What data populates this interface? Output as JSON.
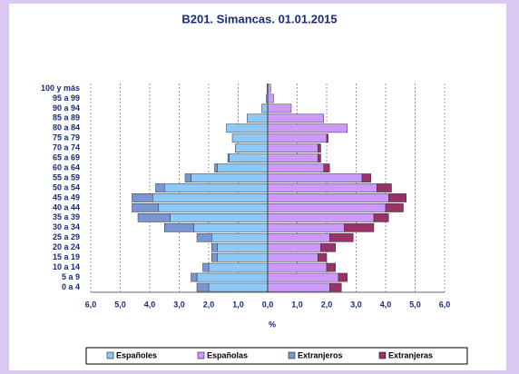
{
  "chart_data": {
    "type": "pyramid",
    "title": "B201. Simancas. 01.01.2015",
    "x_label": "%",
    "categories": [
      "0 a 4",
      "5 a 9",
      "10 a 14",
      "15 a 19",
      "20 a 24",
      "25 a 29",
      "30 a 34",
      "35 a 39",
      "40 a 44",
      "45 a 49",
      "50 a 54",
      "55 a 59",
      "60 a 64",
      "65 a 69",
      "70 a 74",
      "75 a 79",
      "80 a 84",
      "85 a 89",
      "90 a 94",
      "95 a 99",
      "100 y más"
    ],
    "series": [
      {
        "name": "Españoles",
        "color": "#8cc8f8",
        "side": "left",
        "values": [
          -2.0,
          -2.4,
          -2.0,
          -1.7,
          -1.7,
          -1.9,
          -2.5,
          -3.3,
          -3.7,
          -3.9,
          -3.5,
          -2.6,
          -1.7,
          -1.3,
          -1.1,
          -1.2,
          -1.4,
          -0.7,
          -0.2,
          -0.05,
          -0.02
        ]
      },
      {
        "name": "Españolas",
        "color": "#cc99ff",
        "side": "right",
        "values": [
          2.1,
          2.4,
          2.0,
          1.7,
          1.8,
          2.1,
          2.6,
          3.6,
          4.0,
          4.1,
          3.7,
          3.2,
          1.9,
          1.7,
          1.7,
          2.0,
          2.7,
          1.9,
          0.8,
          0.2,
          0.1
        ]
      },
      {
        "name": "Extranjeros",
        "color": "#7a96d0",
        "side": "left",
        "values": [
          -0.4,
          -0.2,
          -0.2,
          -0.2,
          -0.2,
          -0.5,
          -1.0,
          -1.1,
          -0.9,
          -0.7,
          -0.3,
          -0.2,
          -0.1,
          -0.05,
          0,
          0,
          0,
          0,
          0,
          0,
          0
        ]
      },
      {
        "name": "Extranjeras",
        "color": "#993366",
        "side": "right",
        "values": [
          0.4,
          0.3,
          0.3,
          0.3,
          0.5,
          0.8,
          1.0,
          0.5,
          0.6,
          0.6,
          0.5,
          0.3,
          0.2,
          0.1,
          0.1,
          0.05,
          0,
          0,
          0,
          0,
          0
        ]
      }
    ],
    "xlim": [
      -6,
      6
    ],
    "xticks": [
      {
        "value": -6,
        "label": "6,0"
      },
      {
        "value": -5,
        "label": "5,0"
      },
      {
        "value": -4,
        "label": "4,0"
      },
      {
        "value": -3,
        "label": "3,0"
      },
      {
        "value": -2,
        "label": "2,0"
      },
      {
        "value": -1,
        "label": "1,0"
      },
      {
        "value": 0,
        "label": "0,0"
      },
      {
        "value": 1,
        "label": "1,0"
      },
      {
        "value": 2,
        "label": "2,0"
      },
      {
        "value": 3,
        "label": "3,0"
      },
      {
        "value": 4,
        "label": "4,0"
      },
      {
        "value": 5,
        "label": "5,0"
      },
      {
        "value": 6,
        "label": "6,0"
      }
    ],
    "grid": true
  }
}
